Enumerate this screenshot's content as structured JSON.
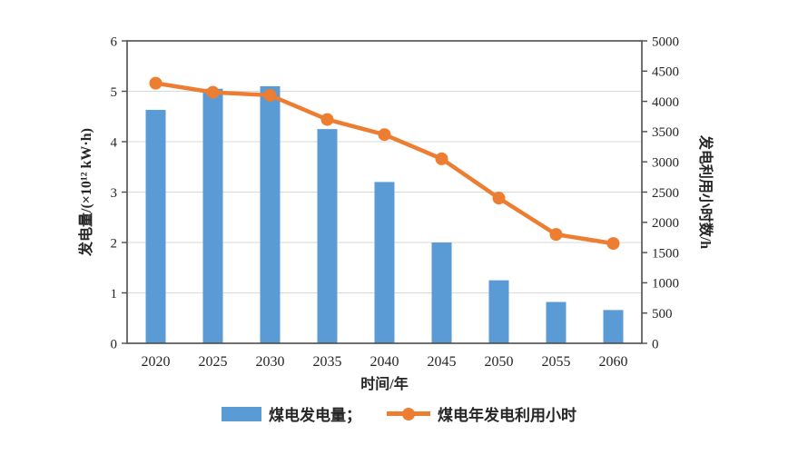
{
  "colors": {
    "bar": "#5B9BD5",
    "line": "#ED7D31",
    "grid": "#D9D9D9",
    "axis": "#4D4D4D",
    "text": "#262626"
  },
  "legend": {
    "bar_label": "煤电发电量；",
    "line_label": "煤电年发电利用小时"
  },
  "chart_data": {
    "type": "bar",
    "subtype": "combo-bar-line-dual-axis",
    "categories": [
      "2020",
      "2025",
      "2030",
      "2035",
      "2040",
      "2045",
      "2050",
      "2055",
      "2060"
    ],
    "series": [
      {
        "name": "煤电发电量",
        "type": "bar",
        "axis": "left",
        "color": "#5B9BD5",
        "values": [
          4.63,
          5.05,
          5.1,
          4.25,
          3.2,
          2.0,
          1.25,
          0.82,
          0.66
        ]
      },
      {
        "name": "煤电年发电利用小时",
        "type": "line",
        "axis": "right",
        "color": "#ED7D31",
        "values": [
          4300,
          4150,
          4100,
          3700,
          3450,
          3050,
          2400,
          1800,
          1650
        ]
      }
    ],
    "xlabel": "时间/年",
    "ylabel_left": "发电量/(×10¹² kW·h)",
    "ylabel_right": "发电利用小时数/h",
    "ylim_left": [
      0,
      6
    ],
    "ylim_right": [
      0,
      5000
    ],
    "yticks_left": [
      0,
      1,
      2,
      3,
      4,
      5,
      6
    ],
    "yticks_right": [
      0,
      500,
      1000,
      1500,
      2000,
      2500,
      3000,
      3500,
      4000,
      4500,
      5000
    ],
    "grid": true,
    "frame": true,
    "legend_position": "bottom"
  }
}
